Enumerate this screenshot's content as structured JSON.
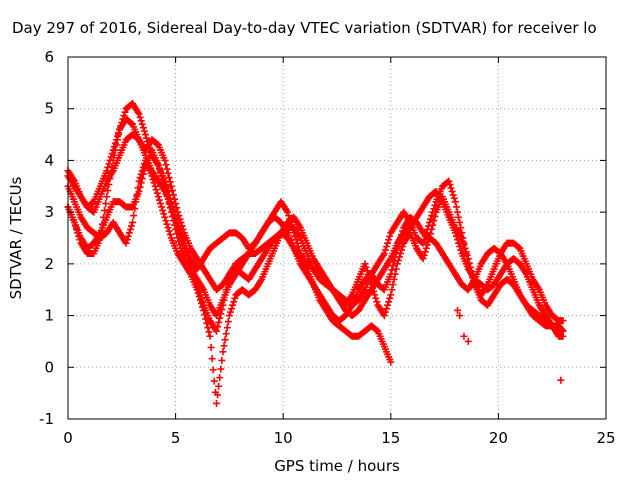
{
  "chart_data": {
    "type": "scatter",
    "title": "Day 297 of 2016, Sidereal Day-to-day VTEC variation (SDTVAR) for receiver lo",
    "xlabel": "GPS time / hours",
    "ylabel": "SDTVAR / TECUs",
    "xlim": [
      0,
      25
    ],
    "ylim": [
      -1,
      6
    ],
    "xticks": [
      "0",
      "5",
      "10",
      "15",
      "20",
      "25"
    ],
    "yticks": [
      "-1",
      "0",
      "1",
      "2",
      "3",
      "4",
      "5",
      "6"
    ],
    "grid": true,
    "legend": "none",
    "marker": "+",
    "color": "#ff0000",
    "series": [
      {
        "x": [
          0.0,
          0.3,
          0.6,
          0.9,
          1.2,
          1.5,
          1.8,
          2.1,
          2.4,
          2.7,
          3.0,
          3.3,
          3.6,
          3.9,
          4.2,
          4.5,
          4.8,
          5.1,
          5.4,
          5.7,
          6.0,
          6.3,
          6.6,
          6.9,
          7.2,
          7.5,
          7.8,
          8.1,
          8.4,
          8.7,
          9.0,
          9.3,
          9.6,
          9.9,
          10.2,
          10.5,
          10.8,
          11.1,
          11.4,
          11.7,
          12.0,
          12.3,
          12.6,
          12.9,
          13.2,
          13.5,
          13.8,
          14.1,
          14.4,
          14.7,
          15.0,
          15.3,
          15.6,
          15.9,
          16.2,
          16.5,
          16.8,
          17.1,
          17.4,
          17.7,
          18.0,
          18.3,
          18.6,
          18.9,
          19.2,
          19.5,
          19.8,
          20.1,
          20.4,
          20.7,
          21.0,
          21.3,
          21.6,
          21.9,
          22.2,
          22.5,
          22.8,
          23.0
        ],
        "y": [
          3.1,
          2.8,
          2.5,
          2.3,
          2.4,
          2.6,
          2.9,
          3.2,
          3.2,
          3.1,
          3.1,
          3.4,
          3.9,
          4.2,
          3.9,
          3.5,
          3.0,
          2.5,
          2.1,
          1.9,
          1.7,
          1.5,
          1.2,
          1.0,
          1.3,
          1.6,
          1.8,
          2.0,
          2.2,
          2.4,
          2.6,
          2.8,
          2.9,
          2.8,
          2.6,
          2.3,
          2.0,
          1.8,
          1.6,
          1.4,
          1.2,
          1.0,
          0.9,
          1.0,
          1.2,
          1.5,
          1.7,
          1.8,
          1.6,
          1.5,
          1.8,
          2.3,
          2.7,
          2.9,
          2.8,
          2.6,
          2.5,
          2.4,
          2.2,
          2.0,
          1.8,
          1.6,
          1.5,
          1.7,
          2.0,
          2.2,
          2.3,
          2.2,
          2.0,
          1.7,
          1.4,
          1.2,
          1.0,
          0.9,
          0.8,
          0.8,
          0.8,
          0.7
        ]
      },
      {
        "x": [
          0.0,
          0.3,
          0.6,
          0.9,
          1.2,
          1.5,
          1.8,
          2.1,
          2.4,
          2.7,
          3.0,
          3.3,
          3.6,
          3.9,
          4.2,
          4.5,
          4.8,
          5.1,
          5.4,
          5.7,
          6.0,
          6.3,
          6.6,
          6.9,
          7.2,
          7.5,
          7.8,
          8.1,
          8.4,
          8.7,
          9.0,
          9.3,
          9.6,
          9.9,
          10.2,
          10.5,
          10.8,
          11.1,
          11.4,
          11.7,
          12.0,
          12.3,
          12.6,
          12.9,
          13.2,
          13.5,
          13.8,
          14.1,
          14.4,
          14.7,
          15.0,
          15.3,
          15.6,
          15.9,
          16.2,
          16.5,
          16.8,
          17.1,
          17.4,
          17.7,
          18.0,
          18.3,
          18.6,
          18.9,
          19.2,
          19.5,
          19.8,
          20.1,
          20.4,
          20.7,
          21.0,
          21.3,
          21.6,
          21.9,
          22.2,
          22.5,
          22.8,
          23.0
        ],
        "y": [
          3.8,
          3.6,
          3.3,
          3.1,
          3.0,
          3.3,
          3.6,
          3.8,
          4.1,
          4.4,
          4.5,
          4.4,
          4.1,
          3.8,
          3.6,
          3.4,
          3.1,
          2.8,
          2.4,
          2.1,
          1.9,
          2.1,
          2.3,
          2.4,
          2.5,
          2.6,
          2.6,
          2.5,
          2.3,
          2.4,
          2.6,
          2.8,
          3.0,
          3.2,
          3.0,
          2.6,
          2.2,
          2.0,
          1.9,
          1.8,
          1.6,
          1.5,
          1.4,
          1.3,
          1.2,
          1.3,
          1.5,
          1.8,
          2.0,
          2.2,
          2.6,
          2.8,
          3.0,
          2.8,
          2.5,
          2.4,
          2.8,
          3.2,
          3.5,
          3.6,
          3.2,
          2.6,
          2.0,
          1.6,
          1.4,
          1.6,
          1.9,
          2.2,
          2.4,
          2.4,
          2.3,
          2.0,
          1.7,
          1.5,
          1.2,
          1.0,
          0.9,
          0.9
        ]
      },
      {
        "x": [
          0.0,
          0.3,
          0.6,
          0.9,
          1.2,
          1.5,
          1.8,
          2.1,
          2.4,
          2.7,
          3.0,
          3.3,
          3.6,
          3.9,
          4.2,
          4.5,
          4.8,
          5.1,
          5.4,
          5.7,
          6.0,
          6.3,
          6.6,
          6.9,
          7.2,
          7.5,
          7.8,
          8.1,
          8.4,
          8.7,
          9.0,
          9.3,
          9.6,
          9.9,
          10.2,
          10.5,
          10.8,
          11.1,
          11.4,
          11.7,
          12.0,
          12.3,
          12.6,
          12.9,
          13.2,
          13.5,
          13.8,
          14.1,
          14.4,
          14.7,
          15.0
        ],
        "y": [
          3.1,
          2.8,
          2.4,
          2.2,
          2.2,
          2.5,
          3.3,
          4.0,
          4.6,
          5.0,
          5.1,
          4.9,
          4.5,
          4.1,
          3.9,
          3.6,
          3.2,
          2.7,
          2.3,
          2.0,
          1.6,
          1.2,
          0.9,
          0.7,
          1.2,
          1.8,
          2.0,
          2.1,
          2.2,
          2.2,
          2.3,
          2.4,
          2.5,
          2.6,
          2.5,
          2.3,
          2.1,
          1.9,
          1.6,
          1.3,
          1.1,
          0.9,
          0.8,
          0.7,
          0.6,
          0.6,
          0.7,
          0.8,
          0.7,
          0.4,
          0.1
        ]
      },
      {
        "x": [
          0.0,
          0.3,
          0.6,
          0.9,
          1.2,
          1.5,
          1.8,
          2.1,
          2.4,
          2.7,
          3.0,
          3.3,
          3.6,
          3.9,
          4.2,
          4.5,
          4.8,
          5.1,
          5.4,
          5.7,
          6.0,
          6.3,
          6.6,
          6.9,
          7.2,
          7.5,
          7.8,
          8.1,
          8.4,
          8.7,
          9.0,
          9.3,
          9.6,
          9.9,
          10.2,
          10.5,
          10.8,
          11.1,
          11.4,
          11.7,
          12.0,
          12.3,
          12.6,
          12.9,
          13.2,
          13.5,
          13.8,
          14.1,
          14.4,
          14.7,
          15.0,
          15.3,
          15.6,
          15.9,
          16.2,
          16.5,
          16.8,
          17.1,
          17.4,
          17.7,
          18.0,
          18.3,
          18.6,
          18.9,
          19.2,
          19.5,
          19.8,
          20.1,
          20.4,
          20.7,
          21.0,
          21.3,
          21.6,
          21.9,
          22.2,
          22.5,
          22.8,
          23.0
        ],
        "y": [
          3.7,
          3.5,
          3.3,
          3.1,
          3.2,
          3.5,
          3.8,
          4.2,
          4.6,
          4.8,
          4.7,
          4.4,
          4.2,
          4.4,
          4.3,
          4.0,
          3.5,
          3.0,
          2.6,
          2.3,
          2.1,
          1.9,
          1.7,
          1.5,
          1.6,
          1.8,
          1.9,
          1.8,
          1.7,
          1.9,
          2.1,
          2.3,
          2.5,
          2.6,
          2.7,
          2.7,
          2.5,
          2.2,
          1.9,
          1.7,
          1.6,
          1.5,
          1.3,
          1.1,
          1.0,
          1.1,
          1.3,
          1.5,
          1.7,
          1.9,
          2.1,
          2.4,
          2.6,
          2.7,
          2.9,
          3.1,
          3.3,
          3.4,
          3.2,
          2.9,
          2.6,
          2.2,
          1.9,
          1.7,
          1.6,
          1.5,
          1.6,
          1.8,
          2.0,
          2.1,
          2.0,
          1.8,
          1.5,
          1.2,
          1.0,
          0.8,
          0.7,
          0.7
        ]
      },
      {
        "x": [
          0.0,
          0.3,
          0.6,
          0.9,
          1.2,
          1.5,
          1.8,
          2.1,
          2.4,
          2.7,
          3.0,
          3.3,
          3.6,
          3.9,
          4.2,
          4.5,
          4.8,
          5.1,
          5.4,
          5.7,
          6.0,
          6.3,
          6.6,
          6.9,
          7.2,
          7.5,
          7.8,
          8.1,
          8.4,
          8.7,
          9.0,
          9.3,
          9.6,
          9.9,
          10.2,
          10.5,
          10.8,
          11.1,
          11.4,
          11.7,
          12.0,
          12.3,
          12.6,
          12.9,
          13.2,
          13.5,
          13.8,
          14.1,
          14.4,
          14.7,
          15.0,
          15.3,
          15.6,
          15.9,
          16.2,
          16.5,
          16.8,
          17.1,
          17.4,
          17.7,
          18.0,
          18.3,
          18.6,
          18.9,
          19.2,
          19.5,
          19.8,
          20.1,
          20.4,
          20.7,
          21.0,
          21.3,
          21.6,
          21.9,
          22.2,
          22.5,
          22.8,
          23.0
        ],
        "y": [
          3.5,
          3.2,
          2.9,
          2.7,
          2.6,
          2.5,
          2.6,
          2.8,
          2.6,
          2.4,
          2.8,
          3.6,
          4.0,
          3.7,
          3.3,
          2.9,
          2.5,
          2.2,
          2.0,
          1.8,
          1.5,
          1.1,
          0.6,
          -0.7,
          0.3,
          1.0,
          1.4,
          1.5,
          1.4,
          1.5,
          1.7,
          2.0,
          2.3,
          2.6,
          2.8,
          2.9,
          2.7,
          2.4,
          2.1,
          1.9,
          1.7,
          1.5,
          1.3,
          1.2,
          1.4,
          1.7,
          2.0,
          1.6,
          1.2,
          1.0,
          1.4,
          2.0,
          2.4,
          2.6,
          2.3,
          2.1,
          2.5,
          3.0,
          3.3,
          3.0,
          2.7,
          2.5,
          2.1,
          1.6,
          1.3,
          1.2,
          1.4,
          1.6,
          1.7,
          1.6,
          1.4,
          1.2,
          1.1,
          1.0,
          0.9,
          0.8,
          0.6,
          0.6
        ]
      },
      {
        "x": [
          18.1,
          18.2,
          18.4,
          18.6,
          22.9
        ],
        "y": [
          1.1,
          1.0,
          0.6,
          0.5,
          -0.25
        ]
      }
    ]
  }
}
